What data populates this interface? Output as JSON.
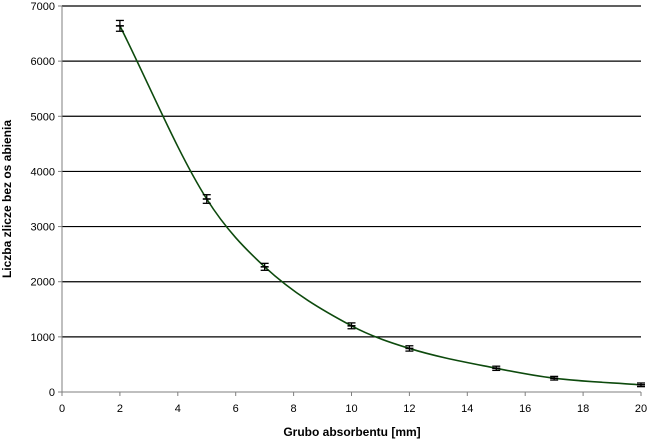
{
  "chart_data": {
    "type": "scatter",
    "xlabel": "Grubo    absorbentu [mm]",
    "ylabel": "Liczba zlicze   bez os   abienia",
    "xlim": [
      0,
      20
    ],
    "ylim": [
      0,
      7000
    ],
    "x_ticks": [
      0,
      2,
      4,
      6,
      8,
      10,
      12,
      14,
      16,
      18,
      20
    ],
    "y_ticks": [
      0,
      1000,
      2000,
      3000,
      4000,
      5000,
      6000,
      7000
    ],
    "grid": "horizontal",
    "legend": "none",
    "series": [
      {
        "x": [
          2,
          5,
          7,
          10,
          12,
          15,
          17,
          20
        ],
        "y": [
          6640,
          3500,
          2270,
          1200,
          790,
          430,
          250,
          130
        ],
        "y_error": [
          80,
          60,
          45,
          35,
          30,
          20,
          15,
          15
        ],
        "marker_color": "#000000"
      }
    ],
    "fit_curve": {
      "type": "smooth",
      "x": [
        2,
        5,
        7,
        10,
        12,
        15,
        17,
        20
      ],
      "y": [
        6640,
        3500,
        2270,
        1200,
        790,
        430,
        250,
        130
      ],
      "color": "#0d4a0d"
    },
    "colors": {
      "grid": "#000000",
      "axis": "#7f7f7f"
    }
  }
}
